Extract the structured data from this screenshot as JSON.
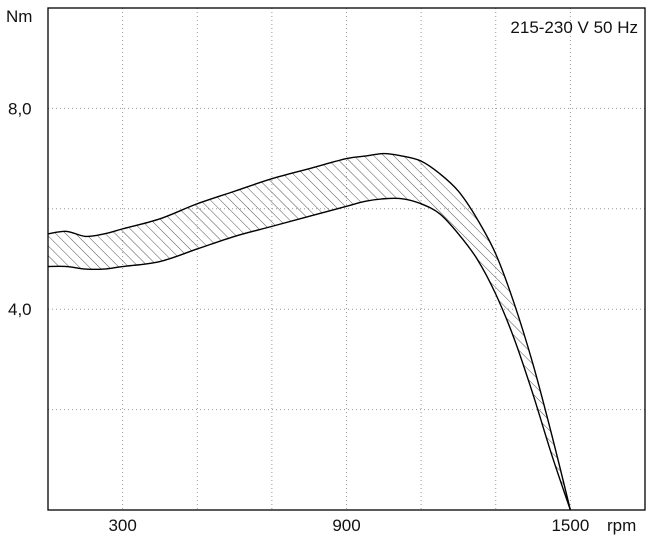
{
  "chart_data": {
    "type": "area",
    "title": "",
    "annotation": "215-230 V 50 Hz",
    "xlabel": "rpm",
    "ylabel": "Nm",
    "xlim": [
      100,
      1700
    ],
    "ylim": [
      0,
      10
    ],
    "x_ticks": [
      300,
      900,
      1500
    ],
    "x_tick_labels": [
      "300",
      "900",
      "1500"
    ],
    "x_grid": [
      300,
      500,
      700,
      900,
      1100,
      1300,
      1500
    ],
    "y_ticks": [
      4.0,
      8.0
    ],
    "y_tick_labels": [
      "4,0",
      "8,0"
    ],
    "y_grid": [
      2,
      4,
      6,
      8
    ],
    "grid": true,
    "grid_style": "dotted",
    "band_fill": "hatched",
    "series": [
      {
        "name": "",
        "role": "upper",
        "x": [
          100,
          150,
          200,
          250,
          300,
          400,
          500,
          600,
          700,
          800,
          900,
          950,
          1000,
          1050,
          1100,
          1150,
          1200,
          1250,
          1300,
          1350,
          1400,
          1450,
          1500
        ],
        "y": [
          5.5,
          5.55,
          5.45,
          5.5,
          5.6,
          5.8,
          6.1,
          6.35,
          6.6,
          6.8,
          7.0,
          7.05,
          7.1,
          7.05,
          6.95,
          6.7,
          6.35,
          5.8,
          5.1,
          4.1,
          2.9,
          1.5,
          0.0
        ]
      },
      {
        "name": "",
        "role": "lower",
        "x": [
          100,
          150,
          200,
          250,
          300,
          400,
          500,
          600,
          700,
          800,
          900,
          950,
          1000,
          1050,
          1100,
          1150,
          1200,
          1250,
          1300,
          1350,
          1400,
          1450,
          1500
        ],
        "y": [
          4.85,
          4.85,
          4.8,
          4.8,
          4.85,
          4.95,
          5.2,
          5.45,
          5.65,
          5.85,
          6.05,
          6.15,
          6.2,
          6.2,
          6.1,
          5.9,
          5.5,
          5.0,
          4.3,
          3.4,
          2.3,
          1.1,
          0.0
        ]
      }
    ],
    "colors": {
      "line": "#000000",
      "grid": "#999999",
      "hatch": "#555555"
    }
  }
}
